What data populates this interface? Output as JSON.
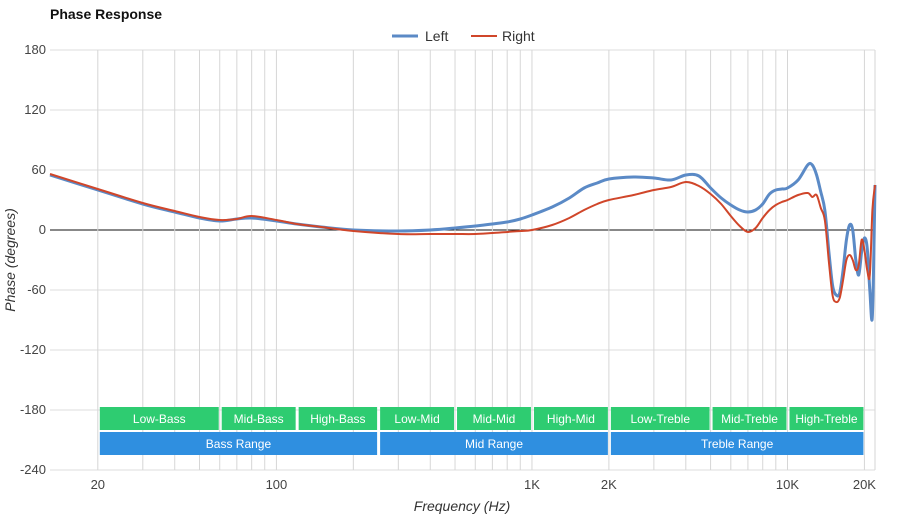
{
  "chart_data": {
    "type": "line",
    "title": "Phase Response",
    "xlabel": "Frequency (Hz)",
    "ylabel": "Phase (degrees)",
    "x_scale": "log",
    "xlim": [
      13,
      22000
    ],
    "ylim": [
      -240,
      180
    ],
    "y_ticks": [
      180,
      120,
      60,
      0,
      -60,
      -120,
      -180,
      -240
    ],
    "x_ticks": [
      {
        "value": 20,
        "label": "20"
      },
      {
        "value": 100,
        "label": "100"
      },
      {
        "value": 1000,
        "label": "1K"
      },
      {
        "value": 2000,
        "label": "2K"
      },
      {
        "value": 10000,
        "label": "10K"
      },
      {
        "value": 20000,
        "label": "20K"
      }
    ],
    "grid": true,
    "legend": "top-center",
    "series": [
      {
        "name": "Left",
        "color": "#5b8ac6",
        "points": [
          [
            13,
            55
          ],
          [
            20,
            40
          ],
          [
            30,
            26
          ],
          [
            40,
            18
          ],
          [
            50,
            12
          ],
          [
            60,
            9
          ],
          [
            70,
            11
          ],
          [
            80,
            12
          ],
          [
            100,
            9
          ],
          [
            120,
            6
          ],
          [
            150,
            3
          ],
          [
            200,
            0
          ],
          [
            300,
            -1
          ],
          [
            400,
            0
          ],
          [
            500,
            2
          ],
          [
            600,
            4
          ],
          [
            700,
            6
          ],
          [
            800,
            8
          ],
          [
            900,
            11
          ],
          [
            1000,
            15
          ],
          [
            1200,
            23
          ],
          [
            1400,
            32
          ],
          [
            1600,
            42
          ],
          [
            1800,
            47
          ],
          [
            2000,
            51
          ],
          [
            2500,
            53
          ],
          [
            3000,
            52
          ],
          [
            3500,
            50
          ],
          [
            4000,
            55
          ],
          [
            4500,
            54
          ],
          [
            5000,
            42
          ],
          [
            5500,
            32
          ],
          [
            6000,
            25
          ],
          [
            6500,
            20
          ],
          [
            7000,
            18
          ],
          [
            7500,
            20
          ],
          [
            8000,
            26
          ],
          [
            8500,
            36
          ],
          [
            9000,
            40
          ],
          [
            9500,
            41
          ],
          [
            10000,
            42
          ],
          [
            11000,
            50
          ],
          [
            12000,
            65
          ],
          [
            12500,
            65
          ],
          [
            13000,
            55
          ],
          [
            13500,
            38
          ],
          [
            14000,
            20
          ],
          [
            14500,
            -20
          ],
          [
            15000,
            -55
          ],
          [
            15500,
            -65
          ],
          [
            16000,
            -63
          ],
          [
            16500,
            -40
          ],
          [
            17000,
            -10
          ],
          [
            17500,
            5
          ],
          [
            18000,
            0
          ],
          [
            18500,
            -30
          ],
          [
            19000,
            -45
          ],
          [
            19500,
            -22
          ],
          [
            20000,
            -8
          ],
          [
            20500,
            -18
          ],
          [
            21000,
            -60
          ],
          [
            21500,
            -85
          ],
          [
            22000,
            45
          ]
        ]
      },
      {
        "name": "Right",
        "color": "#d0462a",
        "points": [
          [
            13,
            56
          ],
          [
            20,
            41
          ],
          [
            30,
            27
          ],
          [
            40,
            19
          ],
          [
            50,
            13
          ],
          [
            60,
            10
          ],
          [
            70,
            11
          ],
          [
            80,
            14
          ],
          [
            100,
            10
          ],
          [
            120,
            6
          ],
          [
            150,
            3
          ],
          [
            200,
            -1
          ],
          [
            300,
            -4
          ],
          [
            400,
            -4
          ],
          [
            500,
            -4
          ],
          [
            600,
            -4
          ],
          [
            700,
            -3
          ],
          [
            800,
            -2
          ],
          [
            900,
            -1
          ],
          [
            1000,
            0
          ],
          [
            1200,
            5
          ],
          [
            1400,
            12
          ],
          [
            1600,
            20
          ],
          [
            1800,
            26
          ],
          [
            2000,
            30
          ],
          [
            2500,
            35
          ],
          [
            3000,
            40
          ],
          [
            3500,
            43
          ],
          [
            4000,
            48
          ],
          [
            4500,
            44
          ],
          [
            5000,
            36
          ],
          [
            5500,
            26
          ],
          [
            6000,
            14
          ],
          [
            6500,
            4
          ],
          [
            7000,
            -2
          ],
          [
            7500,
            2
          ],
          [
            8000,
            12
          ],
          [
            8500,
            20
          ],
          [
            9000,
            25
          ],
          [
            9500,
            28
          ],
          [
            10000,
            30
          ],
          [
            11000,
            35
          ],
          [
            12000,
            37
          ],
          [
            12500,
            33
          ],
          [
            13000,
            35
          ],
          [
            13500,
            22
          ],
          [
            14000,
            10
          ],
          [
            14500,
            -30
          ],
          [
            15000,
            -65
          ],
          [
            15500,
            -72
          ],
          [
            16000,
            -68
          ],
          [
            16500,
            -50
          ],
          [
            17000,
            -30
          ],
          [
            17500,
            -25
          ],
          [
            18000,
            -30
          ],
          [
            18500,
            -40
          ],
          [
            19000,
            -35
          ],
          [
            19500,
            -10
          ],
          [
            20000,
            -20
          ],
          [
            20500,
            -40
          ],
          [
            21000,
            -45
          ],
          [
            21500,
            20
          ],
          [
            22000,
            45
          ]
        ]
      }
    ],
    "bands": [
      {
        "label": "Low-Bass",
        "from": 20,
        "to": 60,
        "row": 1
      },
      {
        "label": "Mid-Bass",
        "from": 60,
        "to": 120,
        "row": 1
      },
      {
        "label": "High-Bass",
        "from": 120,
        "to": 250,
        "row": 1
      },
      {
        "label": "Low-Mid",
        "from": 250,
        "to": 500,
        "row": 1
      },
      {
        "label": "Mid-Mid",
        "from": 500,
        "to": 1000,
        "row": 1
      },
      {
        "label": "High-Mid",
        "from": 1000,
        "to": 2000,
        "row": 1
      },
      {
        "label": "Low-Treble",
        "from": 2000,
        "to": 5000,
        "row": 1
      },
      {
        "label": "Mid-Treble",
        "from": 5000,
        "to": 10000,
        "row": 1
      },
      {
        "label": "High-Treble",
        "from": 10000,
        "to": 20000,
        "row": 1
      },
      {
        "label": "Bass Range",
        "from": 20,
        "to": 250,
        "row": 2
      },
      {
        "label": "Mid Range",
        "from": 250,
        "to": 2000,
        "row": 2
      },
      {
        "label": "Treble Range",
        "from": 2000,
        "to": 20000,
        "row": 2
      }
    ],
    "band_colors": {
      "row1": "#2ecc71",
      "row2": "#2f8fe0"
    }
  }
}
